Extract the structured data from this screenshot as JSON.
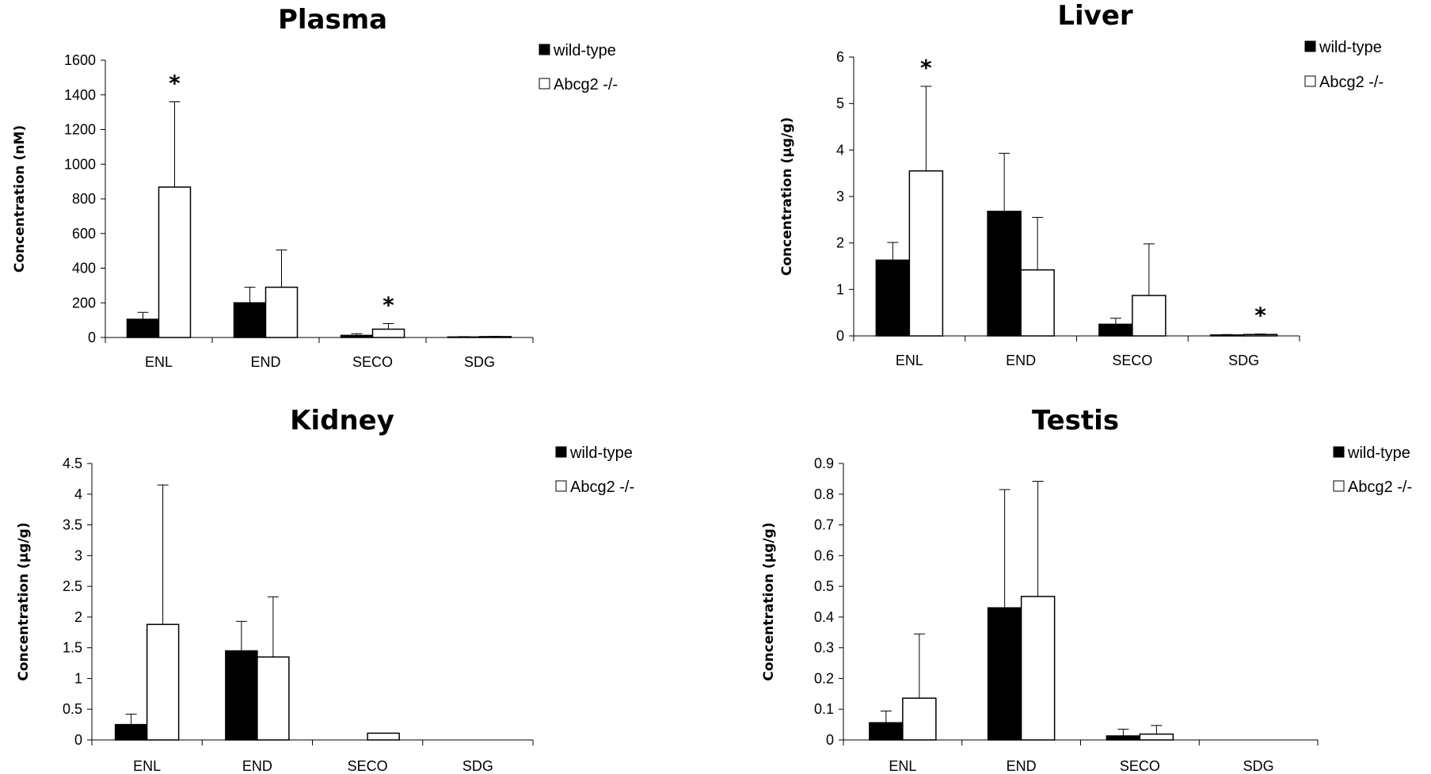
{
  "chart_data": [
    {
      "type": "bar",
      "title": "Plasma",
      "ylabel": "Concentration (nM)",
      "categories": [
        "ENL",
        "END",
        "SECO",
        "SDG"
      ],
      "ylim": [
        0,
        1600
      ],
      "yticks": [
        "0",
        "200",
        "400",
        "600",
        "800",
        "1000",
        "1200",
        "1400",
        "1600"
      ],
      "ytick_values": [
        0,
        200,
        400,
        600,
        800,
        1000,
        1200,
        1400,
        1600
      ],
      "series": [
        {
          "name": "wild-type",
          "color": "#000000",
          "values": [
            105,
            200,
            12,
            3
          ],
          "errors": [
            40,
            90,
            10,
            2
          ]
        },
        {
          "name": "Abcg2 -/-",
          "color": "#ffffff",
          "values": [
            868,
            290,
            48,
            5
          ],
          "errors": [
            492,
            215,
            32,
            2
          ]
        }
      ],
      "annotations": [
        {
          "text": "*",
          "category": "ENL",
          "series": 1
        },
        {
          "text": "*",
          "category": "SECO",
          "series": 1
        }
      ],
      "legend": "top-right"
    },
    {
      "type": "bar",
      "title": "Liver",
      "ylabel": "Concentration (μg/g)",
      "categories": [
        "ENL",
        "END",
        "SECO",
        "SDG"
      ],
      "ylim": [
        0,
        6
      ],
      "yticks": [
        "0",
        "1",
        "2",
        "3",
        "4",
        "5",
        "6"
      ],
      "ytick_values": [
        0,
        1,
        2,
        3,
        4,
        5,
        6
      ],
      "series": [
        {
          "name": "wild-type",
          "color": "#000000",
          "values": [
            1.63,
            2.68,
            0.25,
            0.02
          ],
          "errors": [
            0.38,
            1.25,
            0.13,
            0.01
          ]
        },
        {
          "name": "Abcg2 -/-",
          "color": "#ffffff",
          "values": [
            3.55,
            1.42,
            0.87,
            0.03
          ],
          "errors": [
            1.82,
            1.13,
            1.11,
            0.01
          ]
        }
      ],
      "annotations": [
        {
          "text": "*",
          "category": "ENL",
          "series": 1
        },
        {
          "text": "*",
          "category": "SDG",
          "series": 1
        }
      ],
      "legend": "top-right"
    },
    {
      "type": "bar",
      "title": "Kidney",
      "ylabel": "Concentration (μg/g)",
      "categories": [
        "ENL",
        "END",
        "SECO",
        "SDG"
      ],
      "ylim": [
        0,
        4.5
      ],
      "yticks": [
        "0",
        "0.5",
        "1",
        "1.5",
        "2",
        "2.5",
        "3",
        "3.5",
        "4",
        "4.5"
      ],
      "ytick_values": [
        0,
        0.5,
        1,
        1.5,
        2,
        2.5,
        3,
        3.5,
        4,
        4.5
      ],
      "series": [
        {
          "name": "wild-type",
          "color": "#000000",
          "values": [
            0.25,
            1.45,
            0,
            0
          ],
          "errors": [
            0.17,
            0.48,
            0,
            0
          ]
        },
        {
          "name": "Abcg2 -/-",
          "color": "#ffffff",
          "values": [
            1.88,
            1.35,
            0.11,
            0
          ],
          "errors": [
            2.27,
            0.98,
            0,
            0
          ]
        }
      ],
      "annotations": [],
      "legend": "top-right"
    },
    {
      "type": "bar",
      "title": "Testis",
      "ylabel": "Concentration (μg/g)",
      "categories": [
        "ENL",
        "END",
        "SECO",
        "SDG"
      ],
      "ylim": [
        0,
        0.9
      ],
      "yticks": [
        "0",
        "0.1",
        "0.2",
        "0.3",
        "0.4",
        "0.5",
        "0.6",
        "0.7",
        "0.8",
        "0.9"
      ],
      "ytick_values": [
        0,
        0.1,
        0.2,
        0.3,
        0.4,
        0.5,
        0.6,
        0.7,
        0.8,
        0.9
      ],
      "series": [
        {
          "name": "wild-type",
          "color": "#000000",
          "values": [
            0.056,
            0.43,
            0.013,
            0
          ],
          "errors": [
            0.038,
            0.385,
            0.022,
            0
          ]
        },
        {
          "name": "Abcg2 -/-",
          "color": "#ffffff",
          "values": [
            0.136,
            0.467,
            0.019,
            0
          ],
          "errors": [
            0.209,
            0.375,
            0.028,
            0
          ]
        }
      ],
      "annotations": [],
      "legend": "top-right"
    }
  ]
}
